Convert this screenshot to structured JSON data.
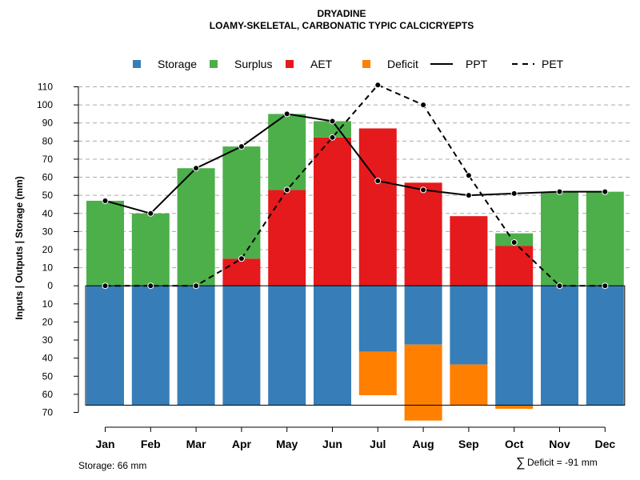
{
  "chart_data": {
    "type": "bar",
    "title": "DRYADINE",
    "subtitle": "LOAMY-SKELETAL, CARBONATIC TYPIC CALCICRYEPTS",
    "ylabel": "Inputs | Outputs | Storage    (mm)",
    "ylim": [
      -70,
      110
    ],
    "upper_ticks": [
      "110",
      "100",
      "90",
      "80",
      "70",
      "60",
      "50",
      "40",
      "30",
      "20",
      "10",
      "0"
    ],
    "lower_ticks": [
      "10",
      "20",
      "30",
      "40",
      "50",
      "60",
      "70"
    ],
    "categories": [
      "Jan",
      "Feb",
      "Mar",
      "Apr",
      "May",
      "Jun",
      "Jul",
      "Aug",
      "Sep",
      "Oct",
      "Nov",
      "Dec"
    ],
    "legend": [
      {
        "name": "Storage",
        "kind": "square",
        "color": "#377EB8"
      },
      {
        "name": "Surplus",
        "kind": "square",
        "color": "#4DAF4A"
      },
      {
        "name": "AET",
        "kind": "square",
        "color": "#E41A1C"
      },
      {
        "name": "Deficit",
        "kind": "square",
        "color": "#FF7F00"
      },
      {
        "name": "PPT",
        "kind": "solid-line",
        "color": "#000000"
      },
      {
        "name": "PET",
        "kind": "dashed-line",
        "color": "#000000"
      }
    ],
    "series": [
      {
        "name": "AET",
        "values": [
          0,
          0,
          0,
          15,
          53,
          82,
          87,
          57,
          38.5,
          22,
          0,
          0
        ]
      },
      {
        "name": "Surplus",
        "values": [
          47,
          40,
          65,
          62,
          42,
          9,
          0,
          0,
          0,
          7,
          52,
          52
        ]
      },
      {
        "name": "Storage",
        "values": [
          66,
          66,
          66,
          66,
          66,
          66,
          36.5,
          32.5,
          43.5,
          66,
          66,
          66
        ]
      },
      {
        "name": "Deficit",
        "values": [
          0,
          0,
          0,
          0,
          0,
          0,
          24,
          42,
          22.5,
          2,
          0,
          0
        ]
      },
      {
        "name": "PPT",
        "values": [
          47,
          40,
          65,
          77,
          95,
          91,
          58,
          53,
          50,
          51,
          52,
          52
        ]
      },
      {
        "name": "PET",
        "values": [
          0,
          0,
          0,
          15,
          53,
          82,
          111,
          100,
          61,
          24,
          0,
          0
        ]
      }
    ],
    "grid": "horizontal dashed (upper half)",
    "legend_position": "top"
  },
  "notes": {
    "storage": "Storage: 66 mm",
    "deficit_symbol": "∑",
    "deficit": "Deficit = -91 mm"
  }
}
